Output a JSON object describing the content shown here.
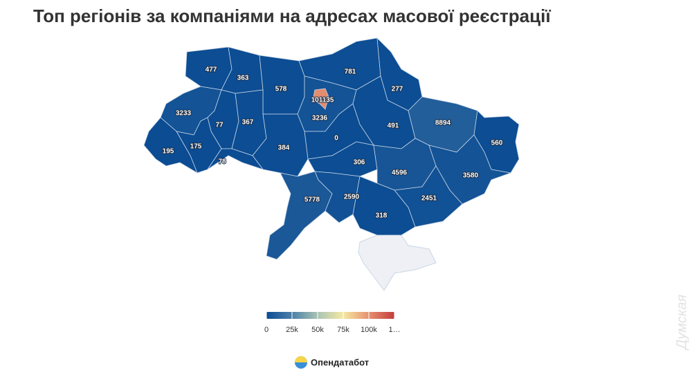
{
  "chart_data": {
    "type": "choropleth",
    "title": "Топ регіонів за компаніями на адресах масової реєстрації",
    "values": [
      477,
      363,
      781,
      578,
      277,
      3233,
      101135,
      3236,
      491,
      8894,
      77,
      367,
      0,
      175,
      195,
      384,
      560,
      78,
      306,
      4596,
      3580,
      5778,
      2590,
      2451,
      318
    ],
    "colorscale": {
      "lim": [
        0,
        125000
      ],
      "ticks": [
        0,
        {
          "value": 25000,
          "label": "25k"
        },
        {
          "value": 50000,
          "label": "50k"
        },
        {
          "value": 75000,
          "label": "75k"
        },
        {
          "value": 100000,
          "label": "100k"
        },
        {
          "value": 125000,
          "label": "1…"
        }
      ],
      "colors": [
        "#0b4c93",
        "#4a7fa8",
        "#a9c4b4",
        "#f5e8a3",
        "#e69070",
        "#c43c3c"
      ]
    },
    "no_data_color": "#eef0f5"
  },
  "logo": {
    "text": "Опендатабот"
  },
  "watermark": "Думская"
}
